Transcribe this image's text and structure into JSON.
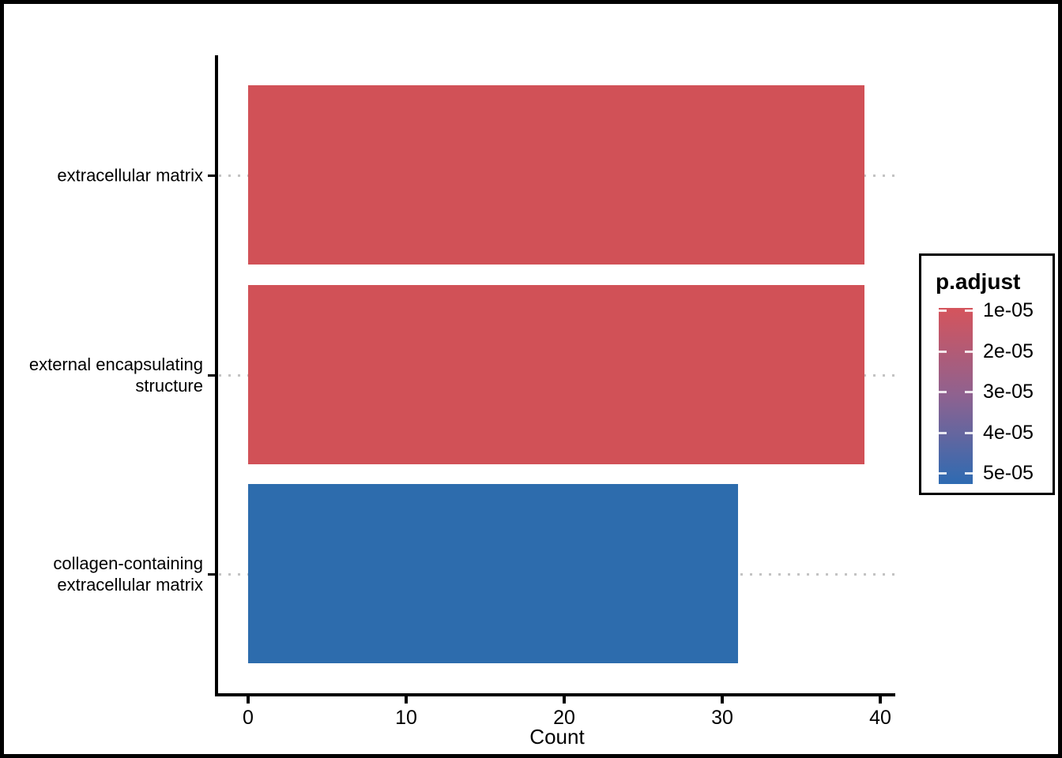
{
  "chart_data": {
    "type": "bar",
    "orientation": "horizontal",
    "title": "",
    "xlabel": "Count",
    "ylabel": "",
    "categories": [
      "extracellular matrix",
      "external encapsulating structure",
      "collagen-containing extracellular matrix"
    ],
    "values": [
      39,
      39,
      31
    ],
    "bar_colors": [
      "#D15157",
      "#D15157",
      "#2D6CAD"
    ],
    "x_ticks": [
      "0",
      "10",
      "20",
      "30",
      "40"
    ],
    "x_tick_values": [
      0,
      10,
      20,
      30,
      40
    ],
    "xlim": [
      0,
      41
    ],
    "grid": "dotted-horizontal",
    "grid_color": "#C3C3C3",
    "axis_color": "#000000",
    "legend": {
      "title": "p.adjust",
      "position": "right",
      "type": "colorbar",
      "tick_labels": [
        "1e-05",
        "2e-05",
        "3e-05",
        "4e-05",
        "5e-05"
      ],
      "gradient_top": "#D5545C",
      "gradient_mid": "#8E6290",
      "gradient_bottom": "#2E6BB2"
    }
  }
}
